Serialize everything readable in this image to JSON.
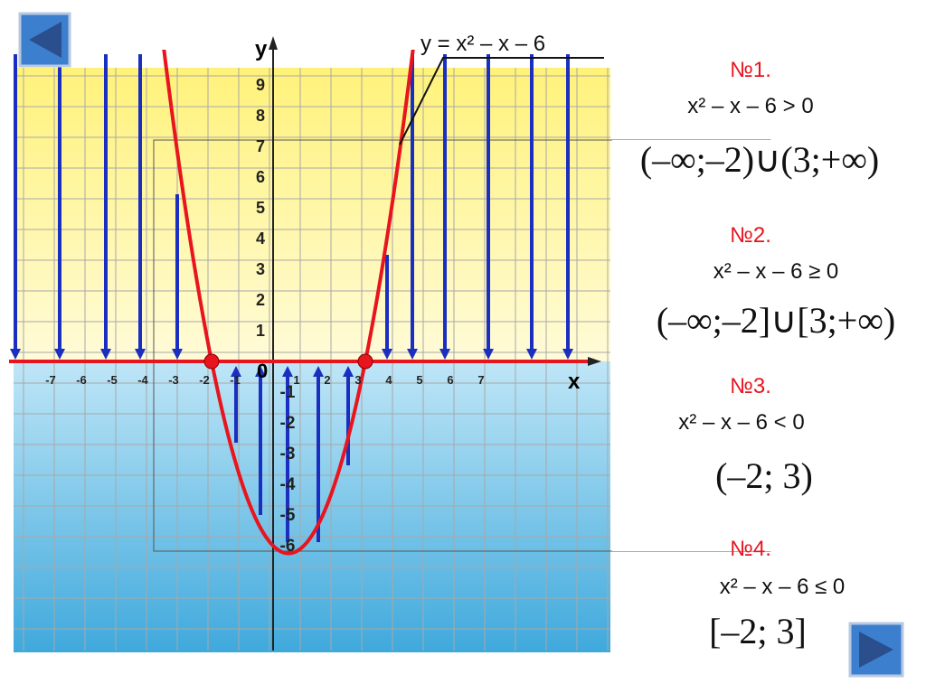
{
  "graph": {
    "y_label": "y",
    "x_label": "x",
    "origin": "0",
    "equation": "y = x² – x – 6",
    "x_ticks": [
      "-7",
      "-6",
      "-5",
      "-4",
      "-3",
      "-2",
      "-1",
      "1",
      "2",
      "3",
      "4",
      "5",
      "6",
      "7"
    ],
    "y_ticks": [
      "9",
      "8",
      "7",
      "6",
      "5",
      "4",
      "3",
      "2",
      "1",
      "-1",
      "-2",
      "-3",
      "-4",
      "-5",
      "-6"
    ]
  },
  "problems": [
    {
      "number": "№1.",
      "inequality": "x² – x – 6 > 0",
      "answer": "(–∞;–2)∪(3;+∞)"
    },
    {
      "number": "№2.",
      "inequality": "x² – x – 6 ≥ 0",
      "answer": "(–∞;–2]∪[3;+∞)"
    },
    {
      "number": "№3.",
      "inequality": "x² – x – 6 < 0",
      "answer": "(–2; 3)"
    },
    {
      "number": "№4.",
      "inequality": "x² – x – 6 ≤ 0",
      "answer": "[–2; 3]"
    }
  ]
}
